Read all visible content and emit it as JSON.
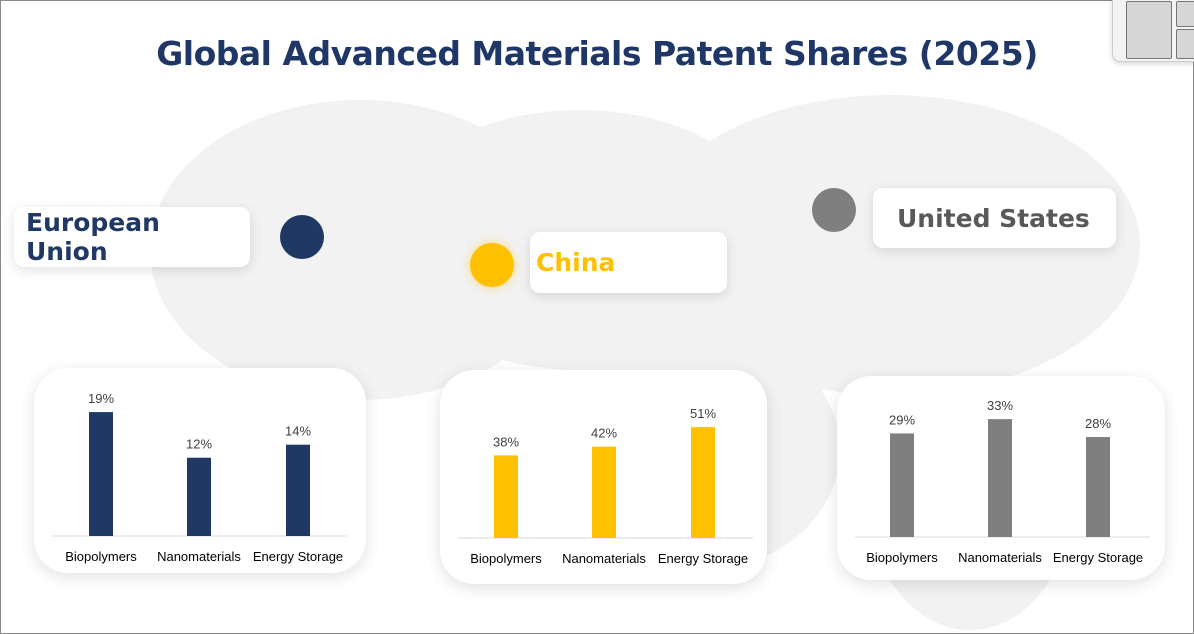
{
  "title": "Global Advanced Materials Patent Shares (2025)",
  "regions": [
    {
      "name": "European Union",
      "color": "#1f3864"
    },
    {
      "name": "China",
      "color": "#ffc000"
    },
    {
      "name": "United States",
      "color": "#7f7f7f"
    }
  ],
  "chart_data": [
    {
      "type": "bar",
      "region": "European Union",
      "categories": [
        "Biopolymers",
        "Nanomaterials",
        "Energy Storage"
      ],
      "values": [
        19,
        12,
        14
      ],
      "data_labels": [
        "19%",
        "12%",
        "14%"
      ],
      "ylim": [
        0,
        23
      ],
      "color": "#1f3864",
      "grid": false
    },
    {
      "type": "bar",
      "region": "China",
      "categories": [
        "Biopolymers",
        "Nanomaterials",
        "Energy Storage"
      ],
      "values": [
        38,
        42,
        51
      ],
      "data_labels": [
        "38%",
        "42%",
        "51%"
      ],
      "ylim": [
        0,
        69
      ],
      "color": "#ffc000",
      "grid": false
    },
    {
      "type": "bar",
      "region": "United States",
      "categories": [
        "Biopolymers",
        "Nanomaterials",
        "Energy Storage"
      ],
      "values": [
        29,
        33,
        28
      ],
      "data_labels": [
        "29%",
        "33%",
        "28%"
      ],
      "ylim": [
        0,
        42
      ],
      "color": "#7f7f7f",
      "grid": false
    }
  ]
}
